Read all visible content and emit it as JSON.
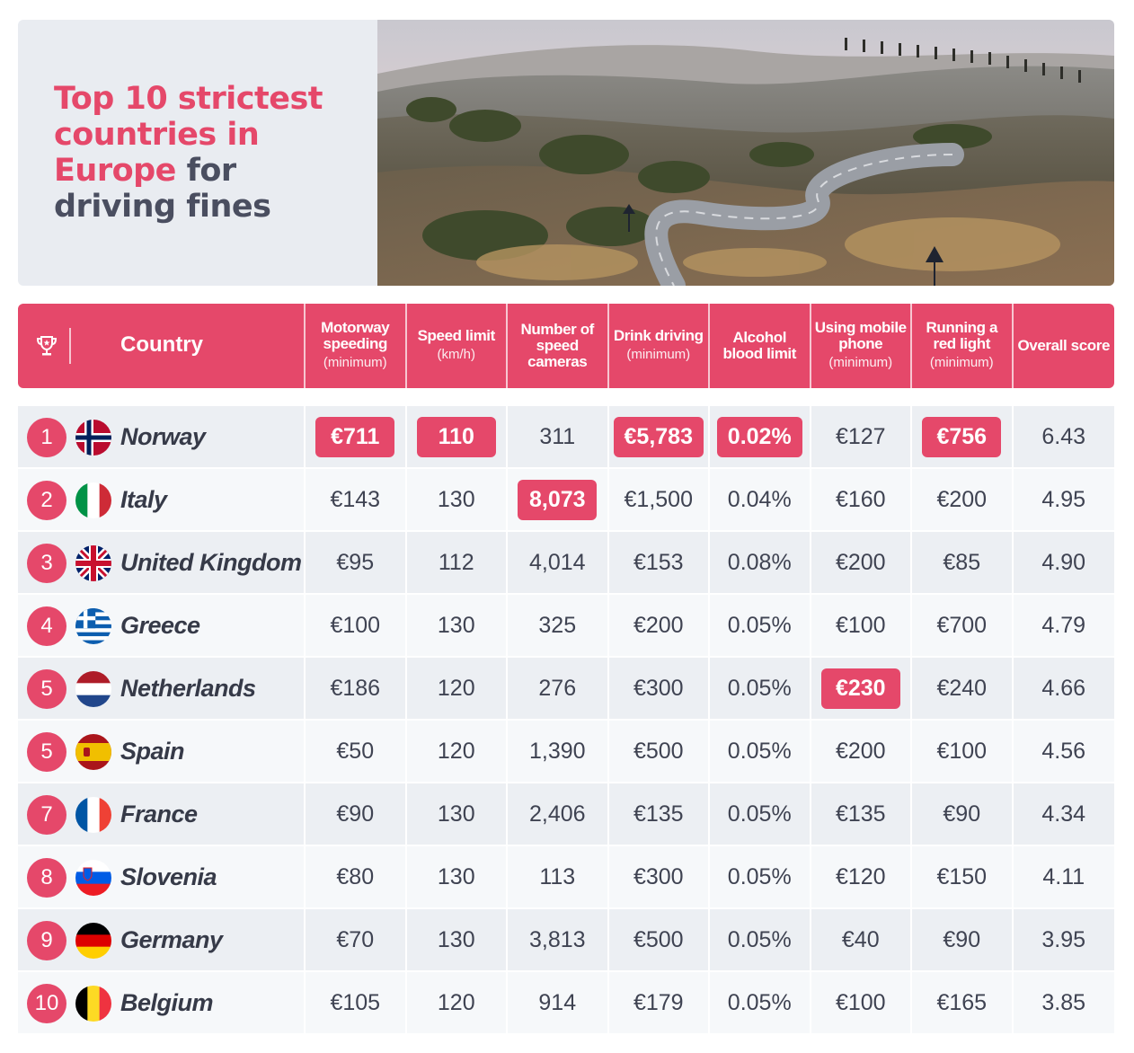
{
  "header": {
    "title_highlight": "Top 10 strictest countries in Europe",
    "title_rest": "for driving fines"
  },
  "columns": {
    "country": "Country",
    "headers": [
      {
        "label": "Motorway speeding",
        "sub": "(minimum)"
      },
      {
        "label": "Speed limit",
        "sub": "(km/h)"
      },
      {
        "label": "Number of speed cameras",
        "sub": ""
      },
      {
        "label": "Drink driving",
        "sub": "(minimum)"
      },
      {
        "label": "Alcohol blood limit",
        "sub": ""
      },
      {
        "label": "Using mobile phone",
        "sub": "(minimum)"
      },
      {
        "label": "Running a red light",
        "sub": "(minimum)"
      },
      {
        "label": "Overall score",
        "sub": ""
      }
    ]
  },
  "rows": [
    {
      "rank": "1",
      "country": "Norway",
      "flag": "norway",
      "values": [
        "€711",
        "110",
        "311",
        "€5,783",
        "0.02%",
        "€127",
        "€756",
        "6.43"
      ],
      "highlight": [
        0,
        1,
        3,
        4,
        6
      ]
    },
    {
      "rank": "2",
      "country": "Italy",
      "flag": "italy",
      "values": [
        "€143",
        "130",
        "8,073",
        "€1,500",
        "0.04%",
        "€160",
        "€200",
        "4.95"
      ],
      "highlight": [
        2
      ]
    },
    {
      "rank": "3",
      "country": "United Kingdom",
      "flag": "uk",
      "values": [
        "€95",
        "112",
        "4,014",
        "€153",
        "0.08%",
        "€200",
        "€85",
        "4.90"
      ],
      "highlight": []
    },
    {
      "rank": "4",
      "country": "Greece",
      "flag": "greece",
      "values": [
        "€100",
        "130",
        "325",
        "€200",
        "0.05%",
        "€100",
        "€700",
        "4.79"
      ],
      "highlight": []
    },
    {
      "rank": "5",
      "country": "Netherlands",
      "flag": "netherlands",
      "values": [
        "€186",
        "120",
        "276",
        "€300",
        "0.05%",
        "€230",
        "€240",
        "4.66"
      ],
      "highlight": [
        5
      ]
    },
    {
      "rank": "5",
      "country": "Spain",
      "flag": "spain",
      "values": [
        "€50",
        "120",
        "1,390",
        "€500",
        "0.05%",
        "€200",
        "€100",
        "4.56"
      ],
      "highlight": []
    },
    {
      "rank": "7",
      "country": "France",
      "flag": "france",
      "values": [
        "€90",
        "130",
        "2,406",
        "€135",
        "0.05%",
        "€135",
        "€90",
        "4.34"
      ],
      "highlight": []
    },
    {
      "rank": "8",
      "country": "Slovenia",
      "flag": "slovenia",
      "values": [
        "€80",
        "130",
        "113",
        "€300",
        "0.05%",
        "€120",
        "€150",
        "4.11"
      ],
      "highlight": []
    },
    {
      "rank": "9",
      "country": "Germany",
      "flag": "germany",
      "values": [
        "€70",
        "130",
        "3,813",
        "€500",
        "0.05%",
        "€40",
        "€90",
        "3.95"
      ],
      "highlight": []
    },
    {
      "rank": "10",
      "country": "Belgium",
      "flag": "belgium",
      "values": [
        "€105",
        "120",
        "914",
        "€179",
        "0.05%",
        "€100",
        "€165",
        "3.85"
      ],
      "highlight": []
    }
  ],
  "colors": {
    "accent": "#e5486a",
    "title_dark": "#4a4e60"
  }
}
